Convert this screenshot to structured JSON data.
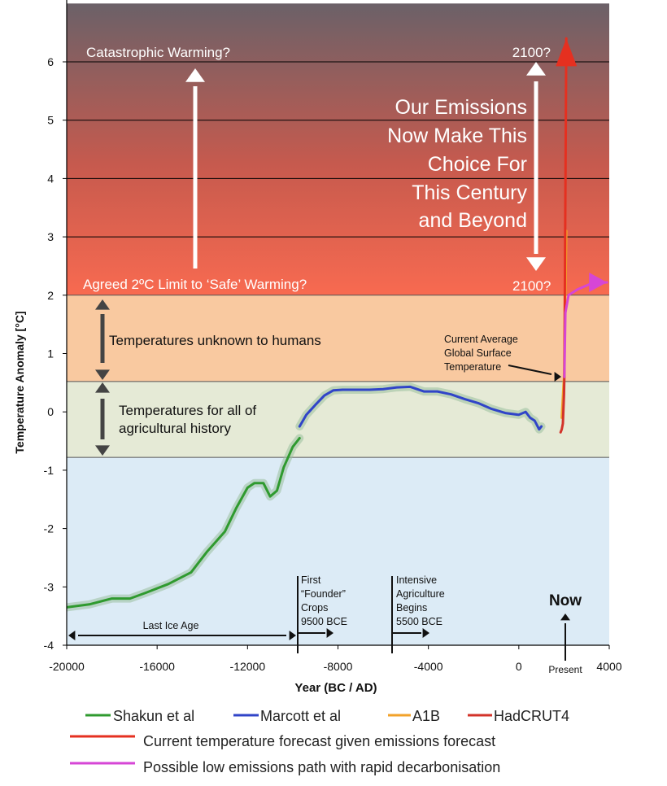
{
  "chart_data": {
    "type": "line",
    "xlabel": "Year (BC / AD)",
    "ylabel": "Temperature Anomaly [°C]",
    "xlim": [
      -20000,
      4000
    ],
    "ylim": [
      -4,
      7
    ],
    "x_ticks": [
      "-20000",
      "-16000",
      "-12000",
      "-8000",
      "-4000",
      "0",
      "4000"
    ],
    "y_ticks": [
      "-4",
      "-3",
      "-2",
      "-1",
      "0",
      "1",
      "2",
      "3",
      "4",
      "5",
      "6"
    ],
    "bands": [
      {
        "name": "past-temperatures",
        "ymin": -4,
        "ymax": -0.78,
        "color": "#dcebf6"
      },
      {
        "name": "agricultural-history",
        "ymin": -0.78,
        "ymax": 0.52,
        "color": "#e5ead6"
      },
      {
        "name": "unknown-to-humans",
        "ymin": 0.52,
        "ymax": 2.0,
        "color": "#f9c9a0"
      },
      {
        "name": "warming",
        "ymin": 2.0,
        "ymax": 7.0,
        "color_bottom": "#f86a50",
        "color_top": "#6b6168"
      }
    ],
    "series": [
      {
        "name": "Shakun et al",
        "color": "#2f9a2f",
        "x": [
          -20000,
          -19000,
          -18000,
          -17200,
          -16500,
          -15500,
          -14500,
          -13800,
          -13000,
          -12500,
          -12000,
          -11700,
          -11300,
          -11000,
          -10700,
          -10400,
          -10000,
          -9700
        ],
        "y": [
          -3.35,
          -3.3,
          -3.2,
          -3.2,
          -3.1,
          -2.95,
          -2.75,
          -2.4,
          -2.05,
          -1.65,
          -1.3,
          -1.22,
          -1.22,
          -1.45,
          -1.35,
          -0.95,
          -0.6,
          -0.45
        ]
      },
      {
        "name": "Marcott et al",
        "color": "#3044c8",
        "x": [
          -9700,
          -9400,
          -9000,
          -8600,
          -8200,
          -7800,
          -7200,
          -6600,
          -6000,
          -5400,
          -4800,
          -4200,
          -3600,
          -3000,
          -2400,
          -1800,
          -1200,
          -600,
          0,
          300,
          500,
          700,
          900,
          1000
        ],
        "y": [
          -0.25,
          -0.05,
          0.12,
          0.28,
          0.37,
          0.38,
          0.38,
          0.38,
          0.39,
          0.42,
          0.43,
          0.35,
          0.35,
          0.3,
          0.22,
          0.15,
          0.05,
          -0.02,
          -0.05,
          0.0,
          -0.1,
          -0.15,
          -0.3,
          -0.25
        ]
      },
      {
        "name": "A1B",
        "color": "#f2a22a",
        "x": [
          1900,
          2000,
          2050,
          2100
        ],
        "y": [
          -0.1,
          0.6,
          1.8,
          3.1
        ]
      },
      {
        "name": "HadCRUT4",
        "color": "#d3332a",
        "x": [
          1850,
          1900,
          1950,
          2000,
          2015
        ],
        "y": [
          -0.35,
          -0.3,
          -0.2,
          0.3,
          0.6
        ]
      },
      {
        "name": "Current temperature forecast given emissions forecast",
        "color": "#e53020",
        "x": [
          2015,
          2100
        ],
        "y": [
          0.6,
          6.4
        ]
      },
      {
        "name": "Possible low emissions path with rapid decarbonisation",
        "color": "#d646d6",
        "x": [
          2015,
          2060,
          2200,
          2600,
          3200,
          3900
        ],
        "y": [
          0.6,
          1.7,
          2.0,
          2.1,
          2.2,
          2.22
        ]
      }
    ],
    "annotations": {
      "catastrophic": "Catastrophic Warming?",
      "agreed_limit": "Agreed 2ºC Limit to ‘Safe’ Warming?",
      "top_2100": "2100?",
      "bottom_2100": "2100?",
      "emissions_lines": [
        "Our Emissions",
        "Now Make This",
        "Choice For",
        "This Century",
        "and Beyond"
      ],
      "unknown": "Temperatures unknown to humans",
      "agri_lines": [
        "Temperatures for all of",
        "agricultural history"
      ],
      "current_avg_lines": [
        "Current Average",
        "Global Surface",
        "Temperature"
      ],
      "ice_age": "Last Ice Age",
      "founder_lines": [
        "First",
        "“Founder”",
        "Crops",
        "9500 BCE"
      ],
      "intensive_lines": [
        "Intensive",
        "Agriculture",
        "Begins",
        "5500 BCE"
      ],
      "now": "Now",
      "present": "Present"
    },
    "legend": {
      "row1": [
        "Shakun et al",
        "Marcott et al",
        "A1B",
        "HadCRUT4"
      ],
      "row2": "Current temperature forecast given emissions forecast",
      "row3": "Possible low emissions path with rapid decarbonisation"
    }
  }
}
